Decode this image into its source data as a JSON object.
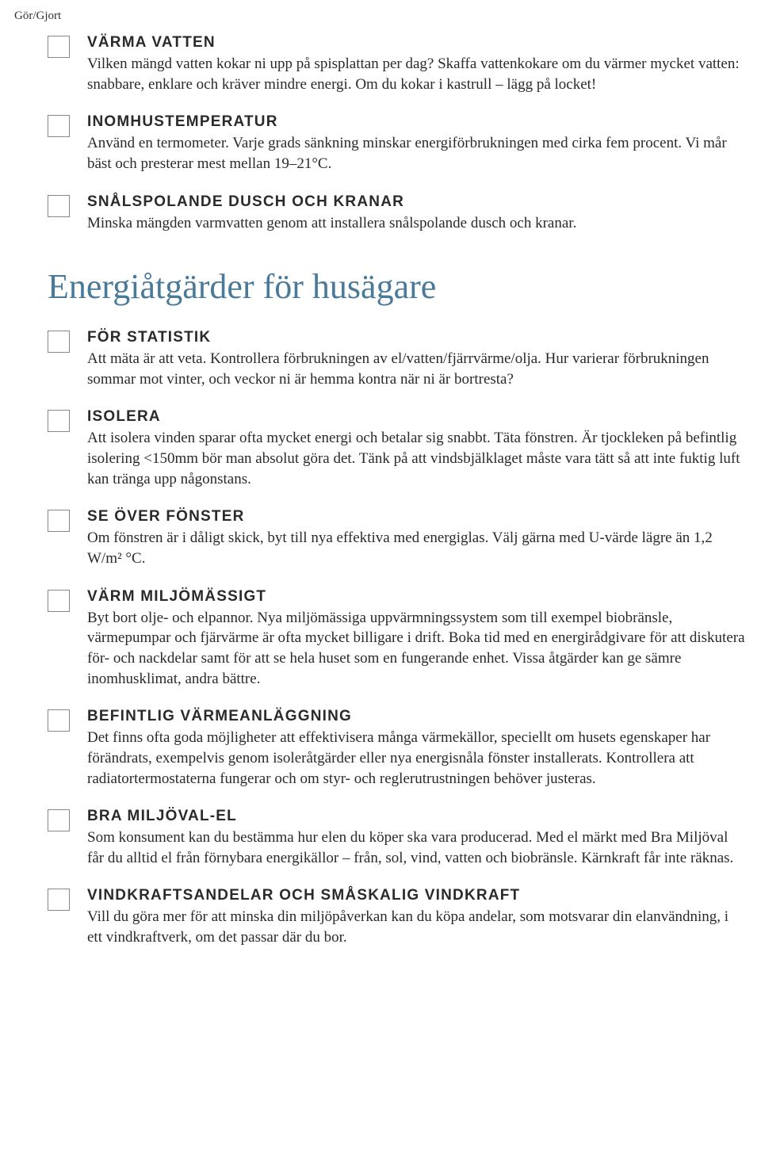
{
  "cornerLabel": "Gör/Gjort",
  "colors": {
    "heading": "#4a7a99",
    "text": "#2a2a2a",
    "checkboxBorder": "#888888",
    "background": "#ffffff"
  },
  "topItems": [
    {
      "title": "VÄRMA VATTEN",
      "body": "Vilken mängd vatten kokar ni upp på spisplattan per dag? Skaffa vattenkokare om du värmer mycket vatten: snabbare, enklare och kräver mindre energi. Om du kokar i kastrull – lägg på locket!"
    },
    {
      "title": "INOMHUSTEMPERATUR",
      "body": "Använd en termometer. Varje grads sänkning minskar energiförbrukningen med cirka fem procent. Vi mår bäst och presterar mest mellan 19–21°C."
    },
    {
      "title": "SNÅLSPOLANDE DUSCH OCH KRANAR",
      "body": "Minska mängden varmvatten genom att installera snålspolande dusch och kranar."
    }
  ],
  "sectionHeading": "Energiåtgärder för husägare",
  "bottomItems": [
    {
      "title": "FÖR STATISTIK",
      "body": "Att mäta är att veta. Kontrollera förbrukningen av el/vatten/fjärrvärme/olja. Hur varierar förbrukningen sommar mot vinter, och veckor ni är hemma kontra när ni är bortresta?"
    },
    {
      "title": "ISOLERA",
      "body": "Att isolera vinden sparar ofta mycket energi och betalar sig snabbt. Täta fönstren. Är tjockleken på befintlig isolering <150mm bör man absolut göra det. Tänk på att vindsbjälklaget måste vara tätt så att inte fuktig luft kan tränga upp någonstans."
    },
    {
      "title": "SE ÖVER FÖNSTER",
      "body": "Om fönstren är i dåligt skick, byt till nya effektiva med energiglas. Välj gärna med U-värde lägre än 1,2 W/m² °C."
    },
    {
      "title": "VÄRM MILJÖMÄSSIGT",
      "body": "Byt bort olje- och elpannor. Nya miljömässiga uppvärmningssystem som till exempel biobränsle, värmepumpar och fjärvärme är ofta mycket billigare i drift. Boka tid med en energirådgivare för att diskutera för- och nackdelar samt för att se hela huset som en fungerande enhet. Vissa åtgärder kan ge sämre inomhusklimat, andra bättre."
    },
    {
      "title": "BEFINTLIG VÄRMEANLÄGGNING",
      "body": "Det finns ofta goda möjligheter att effektivisera många värmekällor, speciellt om husets egenskaper har förändrats, exempelvis genom isoleråtgärder eller nya energisnåla fönster installerats. Kontrollera att radiatortermostaterna fungerar och om styr- och reglerut­rustningen behöver justeras."
    },
    {
      "title": "BRA MILJÖVAL-EL",
      "body": "Som konsument kan du bestämma hur elen du köper ska vara producerad. Med el märkt med Bra Miljöval får du alltid el från förnybara energikällor – från, sol, vind, vatten och biobränsle. Kärnkraft får inte räknas."
    },
    {
      "title": "VINDKRAFTSANDELAR OCH SMÅSKALIG VINDKRAFT",
      "body": "Vill du göra mer för att minska din miljöpåverkan kan du köpa andelar, som motsvarar din elanvändning, i ett vindkraftverk, om det passar där du bor."
    }
  ]
}
